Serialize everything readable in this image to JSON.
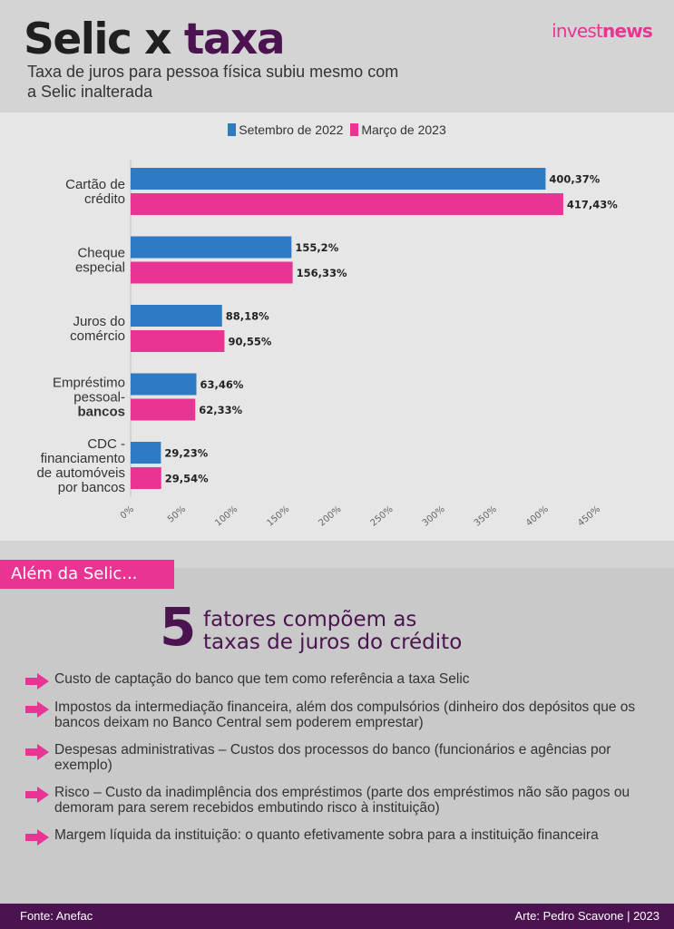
{
  "header": {
    "title_part1": "Selic x ",
    "title_part2": "taxa",
    "subtitle": "Taxa de juros para pessoa física subiu mesmo com a Selic inalterada",
    "logo_part1": "invest",
    "logo_part2": "news"
  },
  "colors": {
    "series_1": "#2e7bc4",
    "series_2": "#e83594",
    "accent_purple": "#4b1450"
  },
  "chart_data": {
    "type": "bar",
    "orientation": "horizontal",
    "categories": [
      [
        "Cartão de",
        "crédito"
      ],
      [
        "Cheque",
        "especial"
      ],
      [
        "Juros do",
        "comércio"
      ],
      [
        "Empréstimo",
        "pessoal-",
        "bancos"
      ],
      [
        "CDC -",
        "financiamento",
        "de automóveis",
        "por bancos"
      ]
    ],
    "series": [
      {
        "name": "Setembro de 2022",
        "color": "#2e7bc4",
        "values": [
          400.37,
          155.2,
          88.18,
          63.46,
          29.23
        ],
        "labels": [
          "400,37%",
          "155,2%",
          "88,18%",
          "63,46%",
          "29,23%"
        ]
      },
      {
        "name": "Março de 2023",
        "color": "#e83594",
        "values": [
          417.43,
          156.33,
          90.55,
          62.33,
          29.54
        ],
        "labels": [
          "417,43%",
          "156,33%",
          "90,55%",
          "62,33%",
          "29,54%"
        ]
      }
    ],
    "xlim": [
      0,
      450
    ],
    "xticks": [
      "0%",
      "50%",
      "100%",
      "150%",
      "200%",
      "250%",
      "300%",
      "350%",
      "400%",
      "450%"
    ],
    "legend_position": "top-center",
    "grid": false
  },
  "section": {
    "tab_label": "Além da Selic...",
    "big_number": "5",
    "heading_line1": "fatores compõem as",
    "heading_line2": "taxas de juros do crédito",
    "factors": [
      "Custo de captação do banco que tem como referência a taxa Selic",
      "Impostos da intermediação financeira, além dos compulsórios (dinheiro dos depósitos que os bancos deixam no Banco Central sem poderem emprestar)",
      "Despesas administrativas – Custos dos processos do banco (funcionários e agências por exemplo)",
      "Risco – Custo da inadimplência dos empréstimos (parte dos empréstimos não são pagos ou demoram para serem recebidos embutindo risco à instituição)",
      "Margem líquida da instituição: o quanto efetivamente sobra para a instituição financeira"
    ]
  },
  "footer": {
    "source": "Fonte: Anefac",
    "credit": "Arte: Pedro Scavone | 2023"
  }
}
